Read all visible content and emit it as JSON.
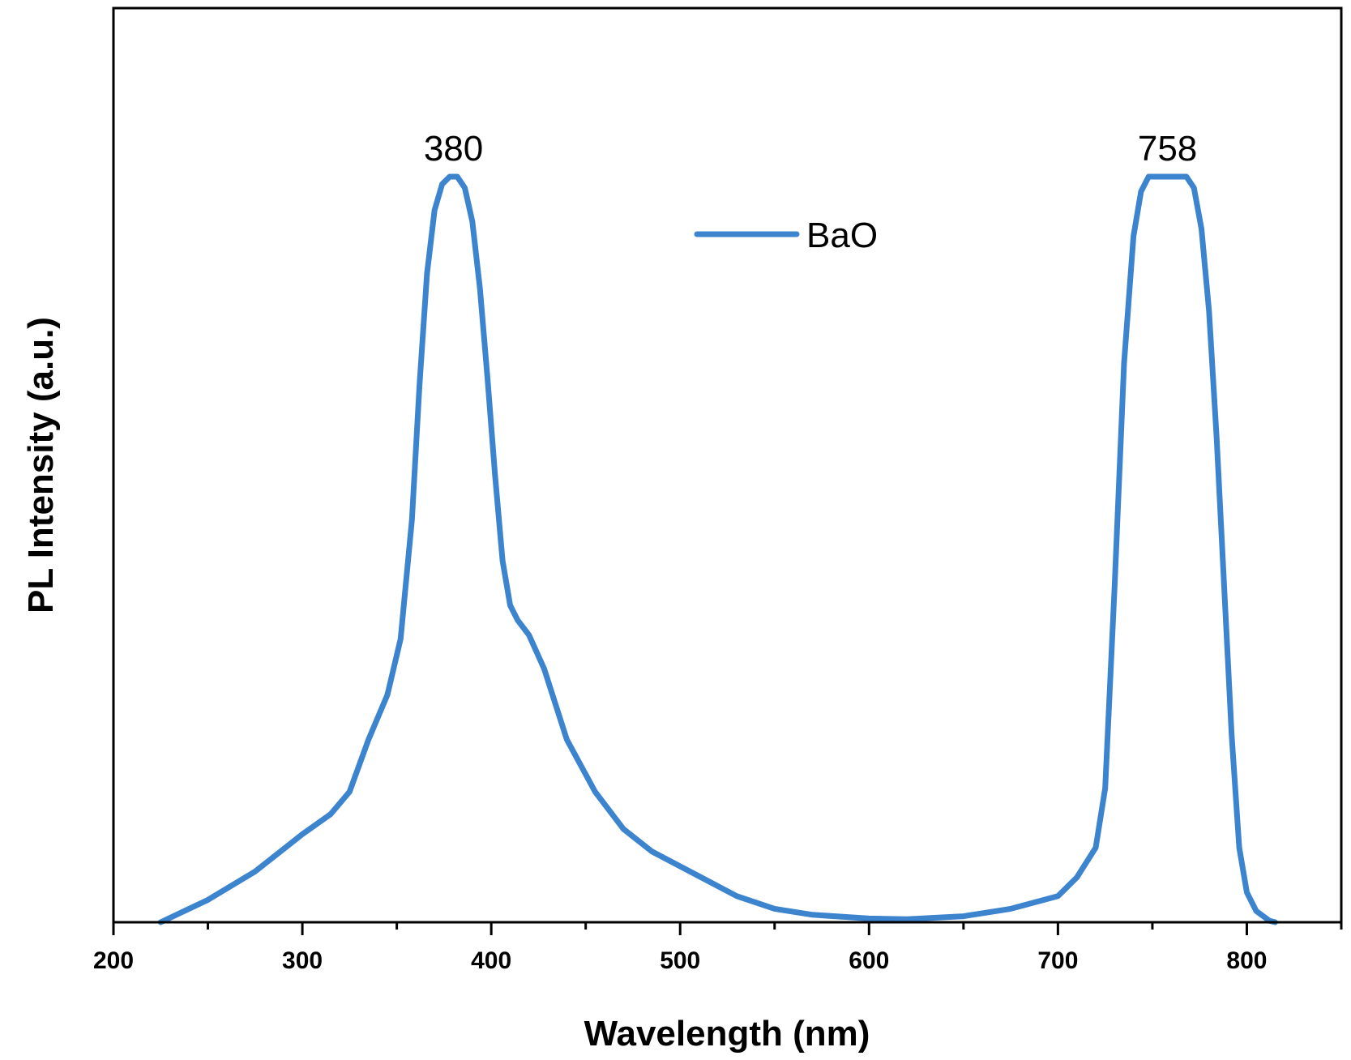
{
  "chart_data": {
    "type": "line",
    "title": "",
    "xlabel": "Wavelength (nm)",
    "ylabel": "PL Intensity (a.u.)",
    "xlim": [
      200,
      850
    ],
    "ylim": [
      0,
      1.15
    ],
    "xticks": [
      200,
      300,
      400,
      500,
      600,
      700,
      800
    ],
    "xticks_minor": [
      250,
      350,
      450,
      550,
      650,
      750,
      850
    ],
    "yticks": [],
    "grid": false,
    "legend": {
      "placement": "top-center",
      "entries": [
        "BaO"
      ]
    },
    "annotations": [
      {
        "text": "380",
        "x": 380,
        "y": 1.0
      },
      {
        "text": "758",
        "x": 758,
        "y": 1.0
      }
    ],
    "series": [
      {
        "name": "BaO",
        "color": "#3d84cf",
        "x": [
          225,
          250,
          275,
          300,
          315,
          325,
          335,
          345,
          352,
          358,
          362,
          366,
          370,
          374,
          378,
          382,
          386,
          390,
          394,
          398,
          402,
          406,
          410,
          414,
          420,
          428,
          440,
          455,
          470,
          485,
          500,
          515,
          530,
          550,
          570,
          600,
          620,
          650,
          675,
          700,
          710,
          720,
          725,
          730,
          735,
          740,
          744,
          748,
          752,
          756,
          760,
          764,
          768,
          772,
          776,
          780,
          784,
          788,
          792,
          796,
          800,
          805,
          812,
          815
        ],
        "y": [
          0.0,
          0.03,
          0.068,
          0.118,
          0.145,
          0.175,
          0.245,
          0.305,
          0.38,
          0.54,
          0.72,
          0.87,
          0.955,
          0.99,
          1.0,
          1.0,
          0.985,
          0.94,
          0.85,
          0.73,
          0.6,
          0.485,
          0.425,
          0.405,
          0.385,
          0.34,
          0.245,
          0.175,
          0.125,
          0.095,
          0.075,
          0.055,
          0.035,
          0.018,
          0.01,
          0.005,
          0.004,
          0.008,
          0.018,
          0.035,
          0.06,
          0.1,
          0.18,
          0.45,
          0.75,
          0.92,
          0.98,
          1.0,
          1.0,
          1.0,
          1.0,
          1.0,
          1.0,
          0.985,
          0.93,
          0.82,
          0.65,
          0.45,
          0.25,
          0.1,
          0.04,
          0.015,
          0.002,
          0.0
        ]
      }
    ]
  }
}
